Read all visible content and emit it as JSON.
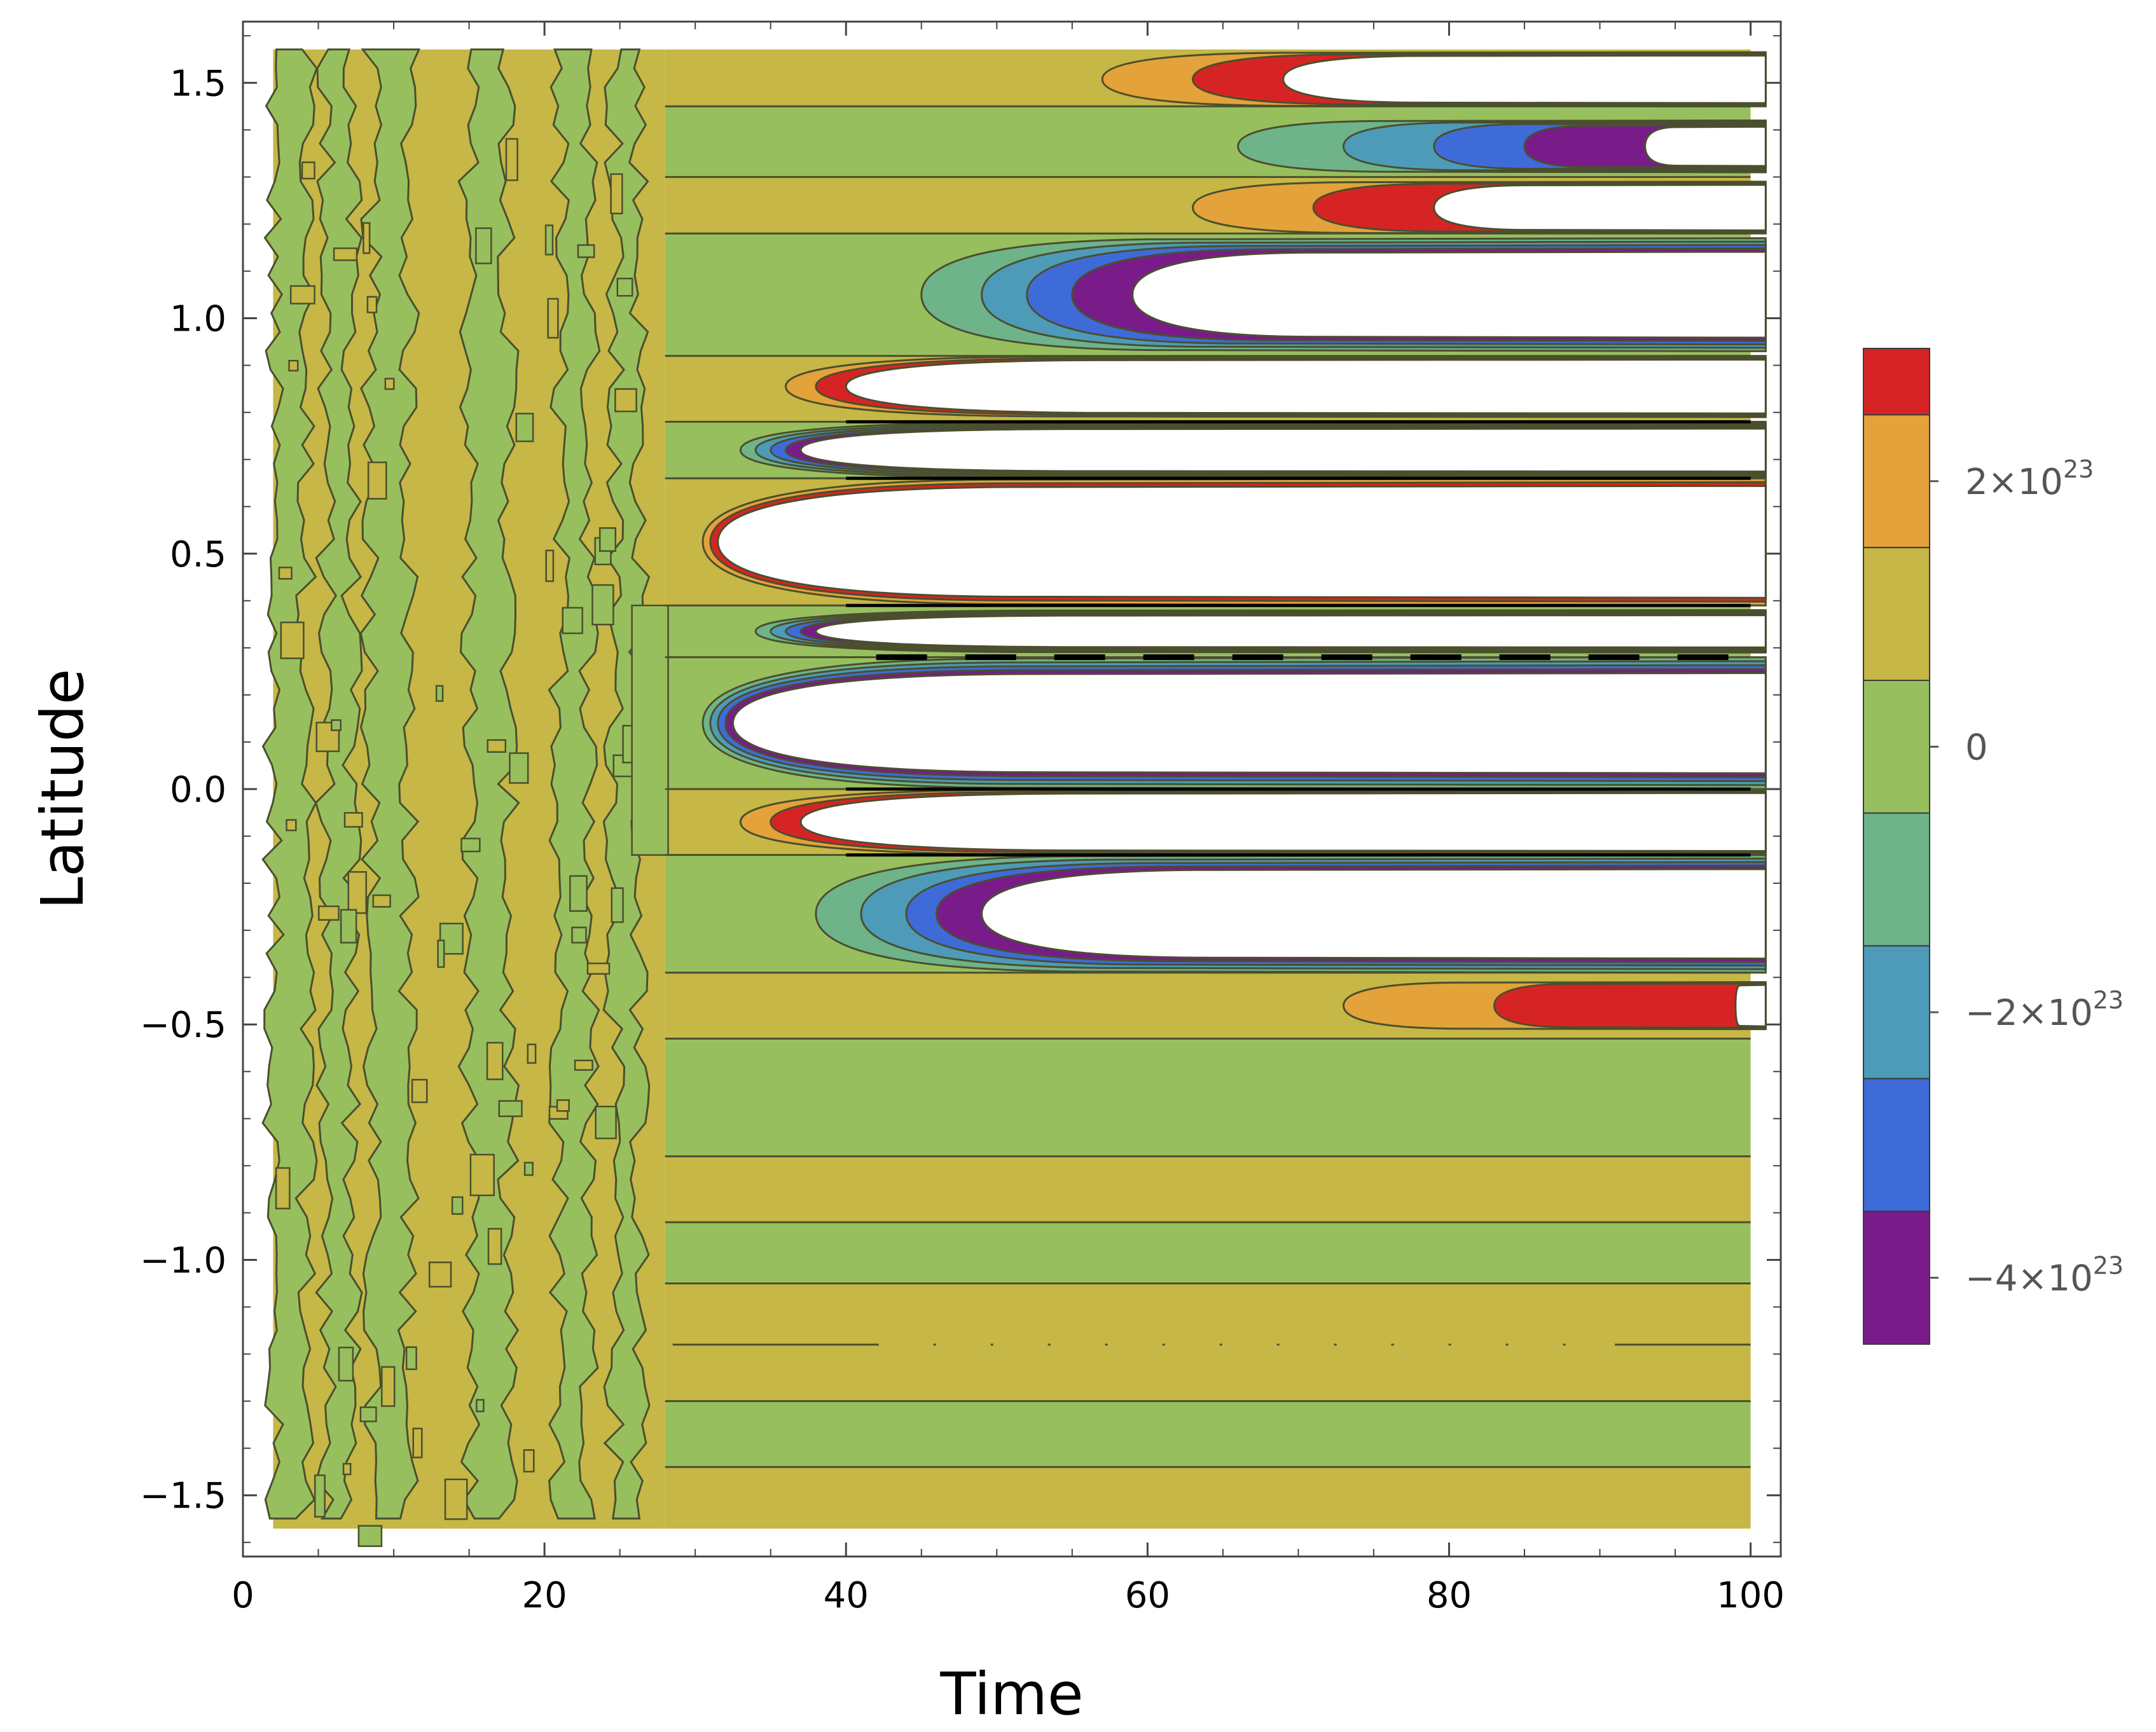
{
  "chart_data": {
    "type": "contour",
    "title": "",
    "xlabel": "Time",
    "ylabel": "Latitude",
    "xlim": [
      0,
      102
    ],
    "ylim": [
      -1.63,
      1.63
    ],
    "data_extent": {
      "x": [
        2,
        100
      ],
      "y": [
        -1.5708,
        1.5708
      ]
    },
    "x_ticks": [
      0,
      20,
      40,
      60,
      80,
      100
    ],
    "x_tick_labels": [
      "0",
      "20",
      "40",
      "60",
      "80",
      "100"
    ],
    "y_ticks": [
      -1.5,
      -1.0,
      -0.5,
      0.0,
      0.5,
      1.0,
      1.5
    ],
    "y_tick_labels": [
      "-1.5",
      "-1.0",
      "-0.5",
      "0.0",
      "0.5",
      "1.0",
      "1.5"
    ],
    "colorbar": {
      "levels": [
        {
          "low": 2.5e+23,
          "high": 3e+23,
          "color": "#d62424"
        },
        {
          "low": 1.5e+23,
          "high": 2.5e+23,
          "color": "#e3a23a"
        },
        {
          "low": 5e+22,
          "high": 1.5e+23,
          "color": "#c6b746"
        },
        {
          "low": -5e+22,
          "high": 5e+22,
          "color": "#98bf5e"
        },
        {
          "low": -1.5e+23,
          "high": -5e+22,
          "color": "#6fb38a"
        },
        {
          "low": -2.5e+23,
          "high": -1.5e+23,
          "color": "#4d9bb8"
        },
        {
          "low": -3.5e+23,
          "high": -2.5e+23,
          "color": "#3f6bd8"
        },
        {
          "low": -4.5e+23,
          "high": -3.5e+23,
          "color": "#7a1b8a"
        }
      ],
      "tick_values": [
        2e+23,
        0,
        -2e+23,
        -4e+23
      ],
      "tick_labels": [
        {
          "base": "2×10",
          "exp": "23"
        },
        {
          "base": "0",
          "exp": ""
        },
        {
          "base": "−2×10",
          "exp": "23"
        },
        {
          "base": "−4×10",
          "exp": "23"
        }
      ]
    },
    "level_colors": {
      "red": "#d62424",
      "orange": "#e3a23a",
      "olive": "#c6b746",
      "green": "#98bf5e",
      "teal": "#6fb38a",
      "cyan": "#4d9bb8",
      "blue": "#3f6bd8",
      "purple": "#7a1b8a",
      "off_scale": "#ffffff",
      "contour_line": "#4a4f2e"
    },
    "horizontal_bands_after_t28": [
      {
        "y_top": 1.5708,
        "y_bottom": 1.45,
        "base": "olive"
      },
      {
        "y_top": 1.45,
        "y_bottom": 1.3,
        "base": "green"
      },
      {
        "y_top": 1.3,
        "y_bottom": 1.18,
        "base": "olive"
      },
      {
        "y_top": 1.18,
        "y_bottom": 0.92,
        "base": "green"
      },
      {
        "y_top": 0.92,
        "y_bottom": 0.78,
        "base": "olive"
      },
      {
        "y_top": 0.78,
        "y_bottom": 0.66,
        "base": "green"
      },
      {
        "y_top": 0.66,
        "y_bottom": 0.39,
        "base": "olive"
      },
      {
        "y_top": 0.39,
        "y_bottom": 0.28,
        "base": "green"
      },
      {
        "y_top": 0.28,
        "y_bottom": 0.0,
        "base": "green"
      },
      {
        "y_top": 0.0,
        "y_bottom": -0.14,
        "base": "olive"
      },
      {
        "y_top": -0.14,
        "y_bottom": -0.39,
        "base": "green"
      },
      {
        "y_top": -0.39,
        "y_bottom": -0.53,
        "base": "olive"
      },
      {
        "y_top": -0.53,
        "y_bottom": -0.78,
        "base": "green"
      },
      {
        "y_top": -0.78,
        "y_bottom": -0.92,
        "base": "olive"
      },
      {
        "y_top": -0.92,
        "y_bottom": -1.05,
        "base": "green"
      },
      {
        "y_top": -1.05,
        "y_bottom": -1.3,
        "base": "olive"
      },
      {
        "y_top": -1.3,
        "y_bottom": -1.44,
        "base": "green"
      },
      {
        "y_top": -1.44,
        "y_bottom": -1.5708,
        "base": "olive"
      }
    ],
    "growth_lobes": [
      {
        "y_top": 1.565,
        "y_bottom": 1.45,
        "onset_time": 57,
        "sequence": [
          "orange",
          "red",
          "off_scale"
        ],
        "tip_offsets": [
          0,
          6,
          12
        ]
      },
      {
        "y_top": 1.42,
        "y_bottom": 1.31,
        "onset_time": 66,
        "sequence": [
          "teal",
          "cyan",
          "blue",
          "purple",
          "off_scale"
        ],
        "tip_offsets": [
          0,
          7,
          13,
          19,
          27
        ]
      },
      {
        "y_top": 1.29,
        "y_bottom": 1.18,
        "onset_time": 63,
        "sequence": [
          "orange",
          "red",
          "off_scale"
        ],
        "tip_offsets": [
          0,
          8,
          16
        ]
      },
      {
        "y_top": 1.17,
        "y_bottom": 0.93,
        "onset_time": 45,
        "sequence": [
          "teal",
          "cyan",
          "blue",
          "purple",
          "off_scale"
        ],
        "tip_offsets": [
          0,
          4,
          7,
          10,
          14
        ]
      },
      {
        "y_top": 0.92,
        "y_bottom": 0.79,
        "onset_time": 36,
        "sequence": [
          "orange",
          "red",
          "off_scale"
        ],
        "tip_offsets": [
          0,
          2,
          4
        ]
      },
      {
        "y_top": 0.78,
        "y_bottom": 0.66,
        "onset_time": 33,
        "sequence": [
          "teal",
          "cyan",
          "blue",
          "purple",
          "off_scale"
        ],
        "tip_offsets": [
          0,
          1,
          2,
          3,
          4
        ]
      },
      {
        "y_top": 0.66,
        "y_bottom": 0.39,
        "onset_time": 30.5,
        "sequence": [
          "orange",
          "red",
          "off_scale"
        ],
        "tip_offsets": [
          0,
          0.5,
          1
        ]
      },
      {
        "y_top": 0.38,
        "y_bottom": 0.29,
        "onset_time": 34,
        "sequence": [
          "teal",
          "cyan",
          "blue",
          "purple",
          "off_scale"
        ],
        "tip_offsets": [
          0,
          1,
          2,
          3,
          4
        ]
      },
      {
        "y_top": 0.28,
        "y_bottom": 0.0,
        "onset_time": 30.5,
        "sequence": [
          "teal",
          "cyan",
          "blue",
          "purple",
          "off_scale"
        ],
        "tip_offsets": [
          0,
          0.5,
          1,
          1.5,
          2
        ]
      },
      {
        "y_top": -0.0,
        "y_bottom": -0.14,
        "onset_time": 33,
        "sequence": [
          "orange",
          "red",
          "off_scale"
        ],
        "tip_offsets": [
          0,
          2,
          4
        ]
      },
      {
        "y_top": -0.14,
        "y_bottom": -0.39,
        "onset_time": 38,
        "sequence": [
          "teal",
          "cyan",
          "blue",
          "purple",
          "off_scale"
        ],
        "tip_offsets": [
          0,
          3,
          6,
          8,
          11
        ]
      },
      {
        "y_top": -0.41,
        "y_bottom": -0.51,
        "onset_time": 73,
        "sequence": [
          "orange",
          "red",
          "off_scale"
        ],
        "tip_offsets": [
          0,
          10,
          26
        ]
      }
    ],
    "noisy_region_time_range": [
      2,
      28
    ]
  }
}
